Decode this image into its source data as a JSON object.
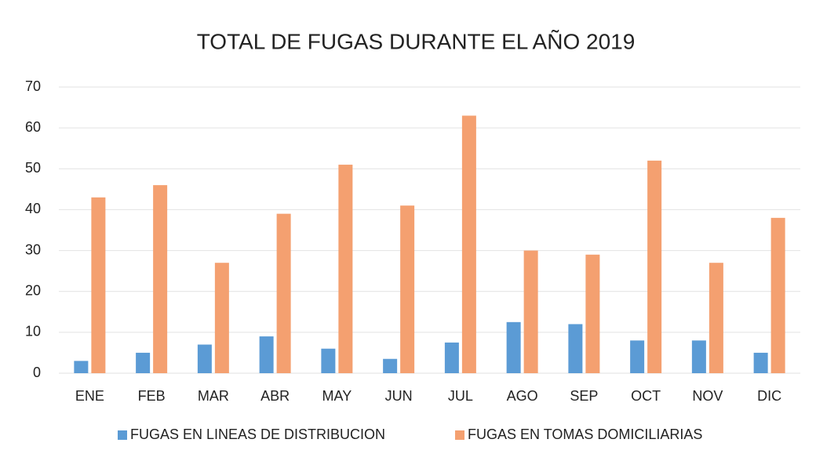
{
  "chart_data": {
    "type": "bar",
    "title": "TOTAL DE FUGAS DURANTE EL AÑO 2019",
    "categories": [
      "ENE",
      "FEB",
      "MAR",
      "ABR",
      "MAY",
      "JUN",
      "JUL",
      "AGO",
      "SEP",
      "OCT",
      "NOV",
      "DIC"
    ],
    "series": [
      {
        "name": "FUGAS EN LINEAS DE DISTRIBUCION",
        "color": "#5b9bd5",
        "values": [
          3,
          5,
          7,
          9,
          6,
          3.5,
          7.5,
          12.5,
          12,
          8,
          8,
          5
        ]
      },
      {
        "name": "FUGAS EN TOMAS DOMICILIARIAS",
        "color": "#f4a070",
        "values": [
          43,
          46,
          27,
          39,
          51,
          41,
          63,
          30,
          29,
          52,
          27,
          38
        ]
      }
    ],
    "ylim": [
      0,
      70
    ],
    "yticks": [
      0,
      10,
      20,
      30,
      40,
      50,
      60,
      70
    ],
    "grid": true,
    "legend": "bottom"
  }
}
